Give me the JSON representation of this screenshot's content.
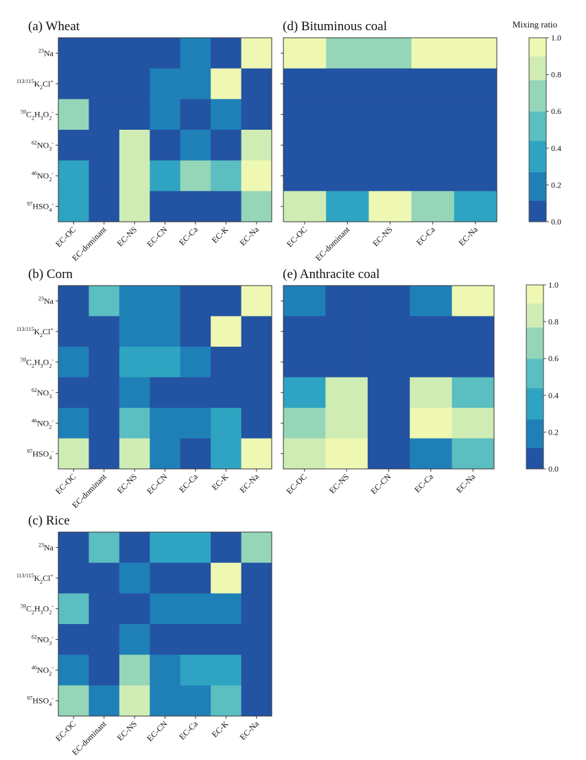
{
  "chart_data": {
    "type": "heatmap",
    "colorbar": {
      "title": "Mixing ratio",
      "range": [
        0.0,
        1.0
      ],
      "ticks": [
        "0.0",
        "0.2",
        "0.4",
        "0.6",
        "0.8",
        "1.0"
      ],
      "tick_values": [
        0.0,
        0.2,
        0.4,
        0.6,
        0.8,
        1.0
      ],
      "bin_edges": [
        0.0,
        0.115,
        0.27,
        0.44,
        0.6,
        0.77,
        0.9,
        1.0
      ],
      "colors": [
        "#2353a3",
        "#1f80b8",
        "#2fa4c2",
        "#5bbec0",
        "#95d6b8",
        "#d0ecb5",
        "#eef8b3"
      ]
    },
    "row_labels": [
      {
        "mass": "23",
        "formula": [
          [
            "Na",
            ""
          ],
          [
            "",
            "+"
          ]
        ],
        "text": "23Na+"
      },
      {
        "mass": "113/115",
        "formula": [
          [
            "K",
            ""
          ],
          [
            "2",
            "sub"
          ],
          [
            "Cl",
            ""
          ],
          [
            "+",
            "sup"
          ]
        ],
        "text": "113/115K2Cl+"
      },
      {
        "mass": "59",
        "formula": [
          [
            "C",
            ""
          ],
          [
            "2",
            "sub"
          ],
          [
            "H",
            ""
          ],
          [
            "3",
            "sub"
          ],
          [
            "O",
            ""
          ],
          [
            "2",
            "sub"
          ],
          [
            "-",
            "sup"
          ]
        ],
        "text": "59C2H3O2-"
      },
      {
        "mass": "62",
        "formula": [
          [
            "NO",
            ""
          ],
          [
            "3",
            "sub"
          ],
          [
            "-",
            "sup"
          ]
        ],
        "text": "62NO3-"
      },
      {
        "mass": "46",
        "formula": [
          [
            "NO",
            ""
          ],
          [
            "2",
            "sub"
          ],
          [
            "-",
            "sup"
          ]
        ],
        "text": "46NO2-"
      },
      {
        "mass": "97",
        "formula": [
          [
            "HSO",
            ""
          ],
          [
            "4",
            "sub"
          ],
          [
            "-",
            "sup"
          ]
        ],
        "text": "97HSO4-"
      }
    ],
    "panels": [
      {
        "id": "a",
        "title": "(a)  Wheat",
        "columns": [
          "EC-OC",
          "EC-dominant",
          "EC-NS",
          "EC-CN",
          "EC-Ca",
          "EC-K",
          "EC-Na"
        ],
        "values": [
          [
            0.05,
            0.05,
            0.05,
            0.05,
            0.2,
            0.05,
            0.95
          ],
          [
            0.05,
            0.05,
            0.05,
            0.2,
            0.2,
            0.95,
            0.05
          ],
          [
            0.67,
            0.05,
            0.05,
            0.2,
            0.05,
            0.2,
            0.05
          ],
          [
            0.05,
            0.05,
            0.82,
            0.05,
            0.2,
            0.05,
            0.82
          ],
          [
            0.38,
            0.05,
            0.82,
            0.38,
            0.67,
            0.52,
            0.95
          ],
          [
            0.38,
            0.05,
            0.82,
            0.05,
            0.05,
            0.05,
            0.67
          ]
        ]
      },
      {
        "id": "b",
        "title": "(b)  Corn",
        "columns": [
          "EC-OC",
          "EC-dominant",
          "EC-NS",
          "EC-CN",
          "EC-Ca",
          "EC-K",
          "EC-Na"
        ],
        "values": [
          [
            0.05,
            0.52,
            0.2,
            0.2,
            0.05,
            0.05,
            0.95
          ],
          [
            0.05,
            0.05,
            0.2,
            0.2,
            0.05,
            0.95,
            0.05
          ],
          [
            0.2,
            0.05,
            0.38,
            0.38,
            0.2,
            0.05,
            0.05
          ],
          [
            0.05,
            0.05,
            0.2,
            0.05,
            0.05,
            0.05,
            0.05
          ],
          [
            0.2,
            0.05,
            0.52,
            0.2,
            0.2,
            0.38,
            0.05
          ],
          [
            0.82,
            0.05,
            0.82,
            0.2,
            0.05,
            0.38,
            0.95
          ]
        ]
      },
      {
        "id": "c",
        "title": "(c)  Rice",
        "columns": [
          "EC-OC",
          "EC-dominant",
          "EC-NS",
          "EC-CN",
          "EC-Ca",
          "EC-K",
          "EC-Na"
        ],
        "values": [
          [
            0.05,
            0.52,
            0.05,
            0.38,
            0.38,
            0.05,
            0.67
          ],
          [
            0.05,
            0.05,
            0.2,
            0.05,
            0.05,
            0.95,
            0.05
          ],
          [
            0.52,
            0.05,
            0.05,
            0.2,
            0.2,
            0.2,
            0.05
          ],
          [
            0.05,
            0.05,
            0.2,
            0.05,
            0.05,
            0.05,
            0.05
          ],
          [
            0.2,
            0.05,
            0.67,
            0.2,
            0.38,
            0.38,
            0.05
          ],
          [
            0.67,
            0.2,
            0.82,
            0.2,
            0.2,
            0.52,
            0.05
          ]
        ]
      },
      {
        "id": "d",
        "title": "(d)  Bituminous coal",
        "columns": [
          "EC-OC",
          "EC-dominant",
          "EC-NS",
          "EC-Ca",
          "EC-Na"
        ],
        "values": [
          [
            0.95,
            0.67,
            0.67,
            0.95,
            0.95
          ],
          [
            0.05,
            0.05,
            0.05,
            0.05,
            0.05
          ],
          [
            0.05,
            0.05,
            0.05,
            0.05,
            0.05
          ],
          [
            0.05,
            0.05,
            0.05,
            0.05,
            0.05
          ],
          [
            0.05,
            0.05,
            0.05,
            0.05,
            0.05
          ],
          [
            0.82,
            0.38,
            0.95,
            0.67,
            0.38
          ]
        ]
      },
      {
        "id": "e",
        "title": "(e)  Anthracite coal",
        "columns": [
          "EC-OC",
          "EC-NS",
          "EC-CN",
          "EC-Ca",
          "EC-Na"
        ],
        "values": [
          [
            0.2,
            0.05,
            0.05,
            0.2,
            0.95
          ],
          [
            0.05,
            0.05,
            0.05,
            0.05,
            0.05
          ],
          [
            0.05,
            0.05,
            0.05,
            0.05,
            0.05
          ],
          [
            0.38,
            0.82,
            0.05,
            0.82,
            0.52
          ],
          [
            0.67,
            0.82,
            0.05,
            0.95,
            0.82
          ],
          [
            0.82,
            0.95,
            0.05,
            0.2,
            0.52
          ]
        ]
      }
    ]
  }
}
